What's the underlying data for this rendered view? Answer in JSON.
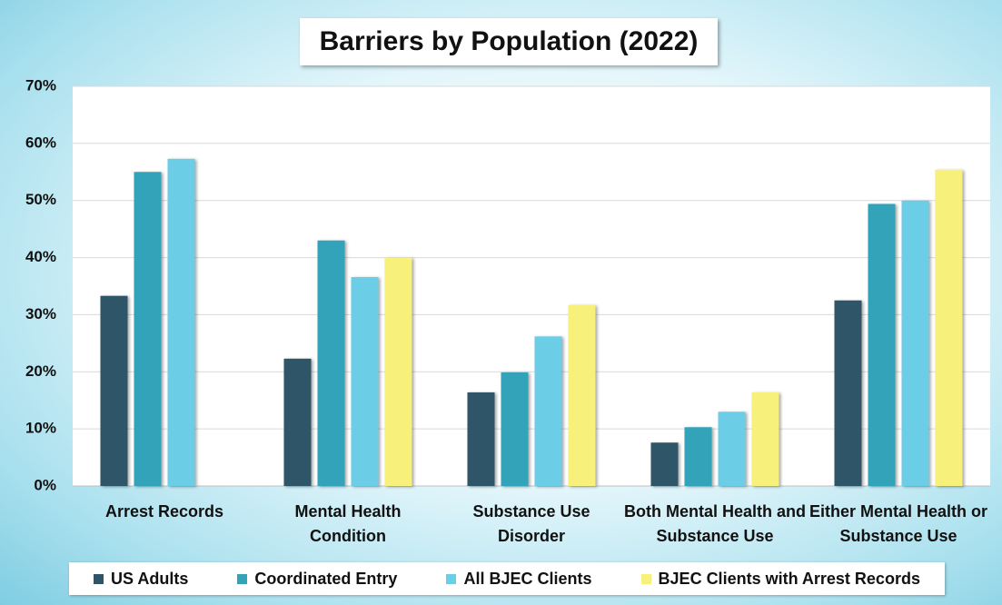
{
  "chart_data": {
    "type": "bar",
    "title": "Barriers by Population (2022)",
    "categories": [
      "Arrest Records",
      "Mental Health Condition",
      "Substance Use Disorder",
      "Both Mental Health and Substance Use",
      "Either Mental Health or Substance Use"
    ],
    "series": [
      {
        "name": "US Adults",
        "color": "#2e5468",
        "values": [
          33.3,
          22.3,
          16.4,
          7.6,
          32.5
        ]
      },
      {
        "name": "Coordinated Entry",
        "color": "#33a3b8",
        "values": [
          55,
          43,
          19.9,
          10.3,
          49.4
        ]
      },
      {
        "name": "All BJEC Clients",
        "color": "#6ccde6",
        "values": [
          57.3,
          36.6,
          26.2,
          13,
          50
        ]
      },
      {
        "name": "BJEC Clients with Arrest Records",
        "color": "#f7f07a",
        "values": [
          null,
          40,
          31.7,
          16.4,
          55.4
        ]
      }
    ],
    "ylim": [
      0,
      70
    ],
    "yticks": [
      {
        "value": 0,
        "label": "0%"
      },
      {
        "value": 10,
        "label": "10%"
      },
      {
        "value": 20,
        "label": "20%"
      },
      {
        "value": 30,
        "label": "30%"
      },
      {
        "value": 40,
        "label": "40%"
      },
      {
        "value": 50,
        "label": "50%"
      },
      {
        "value": 60,
        "label": "60%"
      },
      {
        "value": 70,
        "label": "70%"
      }
    ],
    "grid": true,
    "legend": "bottom"
  }
}
